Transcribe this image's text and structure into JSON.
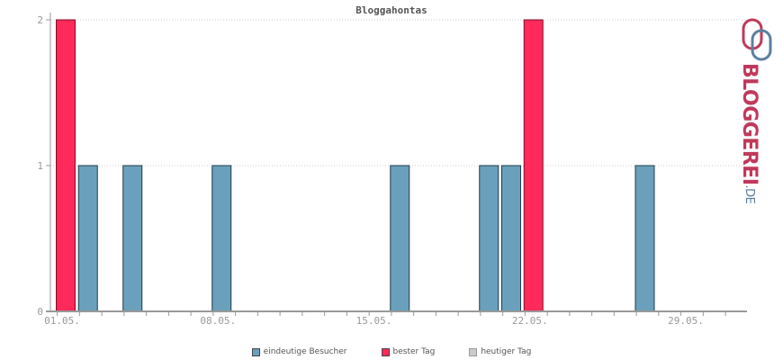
{
  "chart_data": {
    "type": "bar",
    "title": "Bloggahontas",
    "xlabel": "",
    "ylabel": "",
    "ylim": [
      0,
      2
    ],
    "yticks": [
      "0",
      "1",
      "2"
    ],
    "x_day_range": [
      1,
      31
    ],
    "xtick_labels": [
      {
        "day": 1,
        "label": "01.05."
      },
      {
        "day": 8,
        "label": "08.05."
      },
      {
        "day": 15,
        "label": "15.05."
      },
      {
        "day": 22,
        "label": "22.05."
      },
      {
        "day": 29,
        "label": "29.05."
      }
    ],
    "grid": true,
    "legend_placement": "bottom-center",
    "series": [
      {
        "name": "eindeutige Besucher",
        "color": "#6aa0bb",
        "points": [
          {
            "day": 2,
            "value": 1
          },
          {
            "day": 4,
            "value": 1
          },
          {
            "day": 8,
            "value": 1
          },
          {
            "day": 16,
            "value": 1
          },
          {
            "day": 20,
            "value": 1
          },
          {
            "day": 21,
            "value": 1
          },
          {
            "day": 27,
            "value": 1
          }
        ]
      },
      {
        "name": "bester Tag",
        "color": "#ff2a5a",
        "points": [
          {
            "day": 1,
            "value": 2
          },
          {
            "day": 22,
            "value": 2
          }
        ]
      },
      {
        "name": "heutiger Tag",
        "color": "#cccccc",
        "points": []
      }
    ]
  },
  "logo": {
    "text": "BLOGGEREI",
    "suffix": ".DE",
    "icon": "bloggerei-logo-icon",
    "colors": {
      "primary": "#c0395a",
      "secondary": "#5b7fa0"
    }
  }
}
